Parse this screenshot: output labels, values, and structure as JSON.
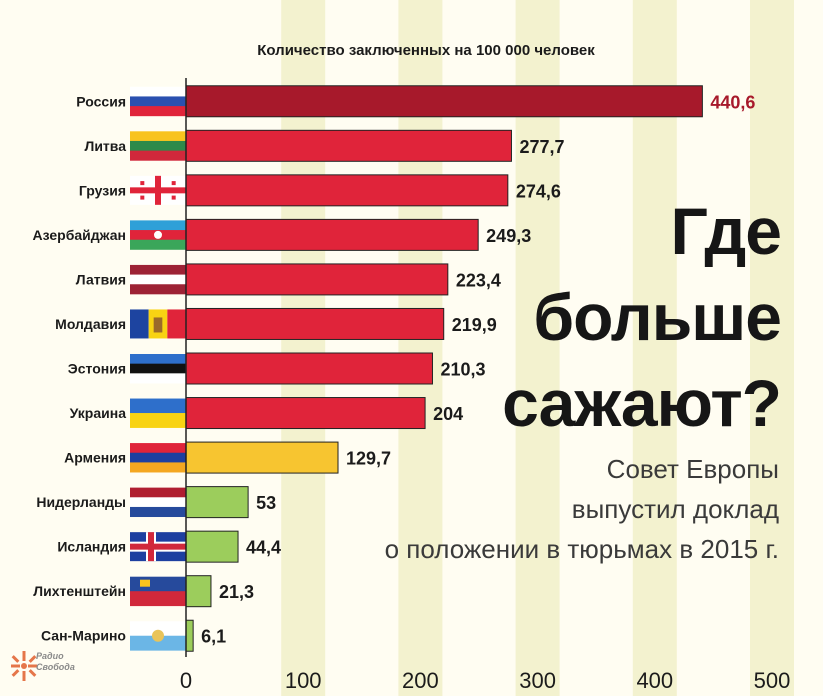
{
  "chart_data": {
    "type": "bar",
    "orientation": "horizontal",
    "title": "Количество заключенных на 100 000 человек",
    "categories": [
      "Россия",
      "Литва",
      "Грузия",
      "Азербайджан",
      "Латвия",
      "Молдавия",
      "Эстония",
      "Украина",
      "Армения",
      "Нидерланды",
      "Исландия",
      "Лихтенштейн",
      "Сан-Марино"
    ],
    "values": [
      440.6,
      277.7,
      274.6,
      249.3,
      223.4,
      219.9,
      210.3,
      204,
      129.7,
      53,
      44.4,
      21.3,
      6.1
    ],
    "value_labels": [
      "440,6",
      "277,7",
      "274,6",
      "249,3",
      "223,4",
      "219,9",
      "210,3",
      "204",
      "129,7",
      "53",
      "44,4",
      "21,3",
      "6,1"
    ],
    "bar_colors": [
      "#a7192b",
      "#e0243a",
      "#e0243a",
      "#e0243a",
      "#e0243a",
      "#e0243a",
      "#e0243a",
      "#e0243a",
      "#f7c530",
      "#9ccd5c",
      "#9ccd5c",
      "#9ccd5c",
      "#9ccd5c"
    ],
    "highlight_label_color": "#a7192b",
    "xlim": [
      0,
      500
    ],
    "xticks": [
      "0",
      "100",
      "200",
      "300",
      "400",
      "500"
    ],
    "grid": true,
    "grid_color": "#f3f2cf"
  },
  "headline": [
    "Где",
    "больше",
    "сажают?"
  ],
  "subtext": [
    "Совет Европы",
    "выпустил доклад",
    "о положении в тюрьмах в 2015 г."
  ],
  "logo": {
    "line1": "Радио",
    "line2": "Свобода",
    "color": "#e5764a"
  }
}
